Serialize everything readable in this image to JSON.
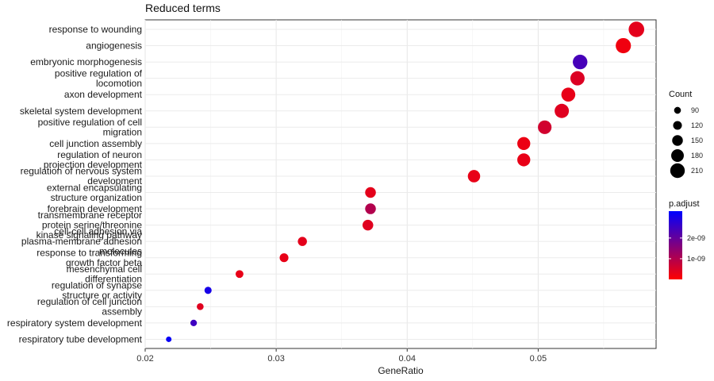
{
  "chart_data": {
    "type": "scatter",
    "title": "Reduced terms",
    "xlabel": "GeneRatio",
    "ylabel": "",
    "xlim": [
      0.02,
      0.059
    ],
    "xticks": [
      {
        "value": 0.02,
        "label": "0.02"
      },
      {
        "value": 0.03,
        "label": "0.03"
      },
      {
        "value": 0.04,
        "label": "0.04"
      },
      {
        "value": 0.05,
        "label": "0.05"
      }
    ],
    "grid": true,
    "terms": [
      {
        "label": "response to wounding",
        "x": 0.0575,
        "count": 225,
        "padj": 0.35
      },
      {
        "label": "angiogenesis",
        "x": 0.0565,
        "count": 220,
        "padj": 0.2
      },
      {
        "label": "embryonic morphogenesis",
        "x": 0.0532,
        "count": 210,
        "padj": 2.4
      },
      {
        "label": "positive regulation of\nlocomotion",
        "x": 0.053,
        "count": 205,
        "padj": 0.45
      },
      {
        "label": "axon development",
        "x": 0.0523,
        "count": 200,
        "padj": 0.3
      },
      {
        "label": "skeletal system development",
        "x": 0.0518,
        "count": 205,
        "padj": 0.4
      },
      {
        "label": "positive regulation of cell\nmigration",
        "x": 0.0505,
        "count": 195,
        "padj": 0.6
      },
      {
        "label": "cell junction assembly",
        "x": 0.0489,
        "count": 185,
        "padj": 0.25
      },
      {
        "label": "regulation of neuron\nprojection development",
        "x": 0.0489,
        "count": 185,
        "padj": 0.3
      },
      {
        "label": "regulation of nervous system\ndevelopment",
        "x": 0.0451,
        "count": 175,
        "padj": 0.3
      },
      {
        "label": "external encapsulating\nstructure organization",
        "x": 0.0372,
        "count": 150,
        "padj": 0.35
      },
      {
        "label": "forebrain development",
        "x": 0.0372,
        "count": 150,
        "padj": 1.0
      },
      {
        "label": "transmembrane receptor\nprotein serine/threonine\nkinase signaling pathway",
        "x": 0.037,
        "count": 150,
        "padj": 0.4
      },
      {
        "label": "cell-cell adhesion via\nplasma-membrane adhesion\nmolecules",
        "x": 0.032,
        "count": 125,
        "padj": 0.35
      },
      {
        "label": "response to transforming\ngrowth factor beta",
        "x": 0.0306,
        "count": 120,
        "padj": 0.3
      },
      {
        "label": "mesenchymal cell\ndifferentiation",
        "x": 0.0272,
        "count": 105,
        "padj": 0.3
      },
      {
        "label": "regulation of synapse\nstructure or activity",
        "x": 0.0248,
        "count": 95,
        "padj": 3.0
      },
      {
        "label": "regulation of cell junction\nassembly",
        "x": 0.0242,
        "count": 90,
        "padj": 0.4
      },
      {
        "label": "respiratory system development",
        "x": 0.0237,
        "count": 85,
        "padj": 2.5
      },
      {
        "label": "respiratory tube development",
        "x": 0.0218,
        "count": 70,
        "padj": 3.2
      }
    ],
    "size_legend": {
      "title": "Count",
      "entries": [
        {
          "label": "90",
          "count": 90
        },
        {
          "label": "120",
          "count": 120
        },
        {
          "label": "150",
          "count": 150
        },
        {
          "label": "180",
          "count": 180
        },
        {
          "label": "210",
          "count": 210
        }
      ]
    },
    "color_legend": {
      "title": "p.adjust",
      "low_color": "#FF0000",
      "high_color": "#0000FF",
      "range": [
        0,
        3.3
      ],
      "ticks": [
        {
          "label": "1e-09",
          "value": 1.0
        },
        {
          "label": "2e-09",
          "value": 2.0
        }
      ]
    }
  }
}
